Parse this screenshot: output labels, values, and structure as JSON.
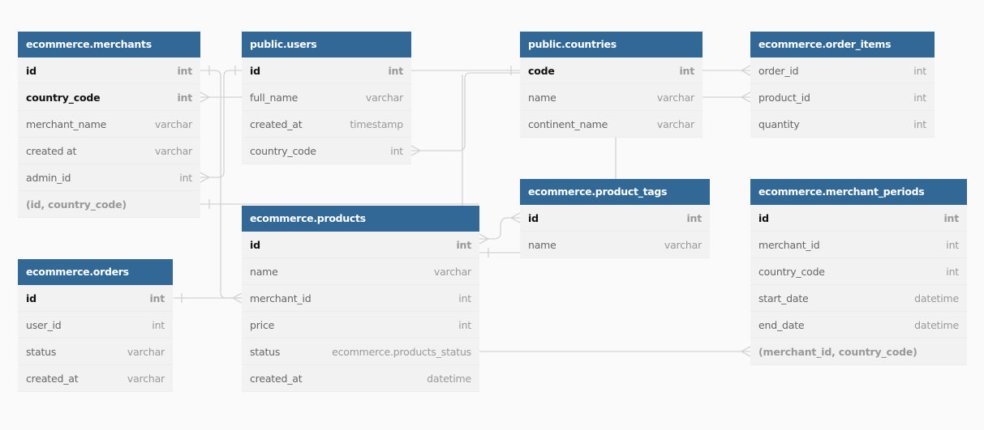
{
  "tables": {
    "merchants": {
      "name": "ecommerce.merchants",
      "fields": [
        {
          "name": "id",
          "type": "int",
          "pk": true
        },
        {
          "name": "country_code",
          "type": "int",
          "pk": true
        },
        {
          "name": "merchant_name",
          "type": "varchar"
        },
        {
          "name": "created at",
          "type": "varchar"
        },
        {
          "name": "admin_id",
          "type": "int"
        },
        {
          "name": "(id, country_code)",
          "type": "",
          "index": true
        }
      ]
    },
    "users": {
      "name": "public.users",
      "fields": [
        {
          "name": "id",
          "type": "int",
          "pk": true
        },
        {
          "name": "full_name",
          "type": "varchar"
        },
        {
          "name": "created_at",
          "type": "timestamp"
        },
        {
          "name": "country_code",
          "type": "int"
        }
      ]
    },
    "countries": {
      "name": "public.countries",
      "fields": [
        {
          "name": "code",
          "type": "int",
          "pk": true
        },
        {
          "name": "name",
          "type": "varchar"
        },
        {
          "name": "continent_name",
          "type": "varchar"
        }
      ]
    },
    "order_items": {
      "name": "ecommerce.order_items",
      "fields": [
        {
          "name": "order_id",
          "type": "int"
        },
        {
          "name": "product_id",
          "type": "int"
        },
        {
          "name": "quantity",
          "type": "int"
        }
      ]
    },
    "product_tags": {
      "name": "ecommerce.product_tags",
      "fields": [
        {
          "name": "id",
          "type": "int",
          "pk": true
        },
        {
          "name": "name",
          "type": "varchar"
        }
      ]
    },
    "merchant_periods": {
      "name": "ecommerce.merchant_periods",
      "fields": [
        {
          "name": "id",
          "type": "int",
          "pk": true
        },
        {
          "name": "merchant_id",
          "type": "int"
        },
        {
          "name": "country_code",
          "type": "int"
        },
        {
          "name": "start_date",
          "type": "datetime"
        },
        {
          "name": "end_date",
          "type": "datetime"
        },
        {
          "name": "(merchant_id, country_code)",
          "type": "",
          "index": true
        }
      ]
    },
    "products": {
      "name": "ecommerce.products",
      "fields": [
        {
          "name": "id",
          "type": "int",
          "pk": true
        },
        {
          "name": "name",
          "type": "varchar"
        },
        {
          "name": "merchant_id",
          "type": "int"
        },
        {
          "name": "price",
          "type": "int"
        },
        {
          "name": "status",
          "type": "ecommerce.products_status"
        },
        {
          "name": "created_at",
          "type": "datetime"
        }
      ]
    },
    "orders": {
      "name": "ecommerce.orders",
      "fields": [
        {
          "name": "id",
          "type": "int",
          "pk": true
        },
        {
          "name": "user_id",
          "type": "int"
        },
        {
          "name": "status",
          "type": "varchar"
        },
        {
          "name": "created_at",
          "type": "varchar"
        }
      ]
    }
  },
  "colors": {
    "header": "#316896",
    "body": "#f2f2f2",
    "link": "#d0d0d0"
  }
}
